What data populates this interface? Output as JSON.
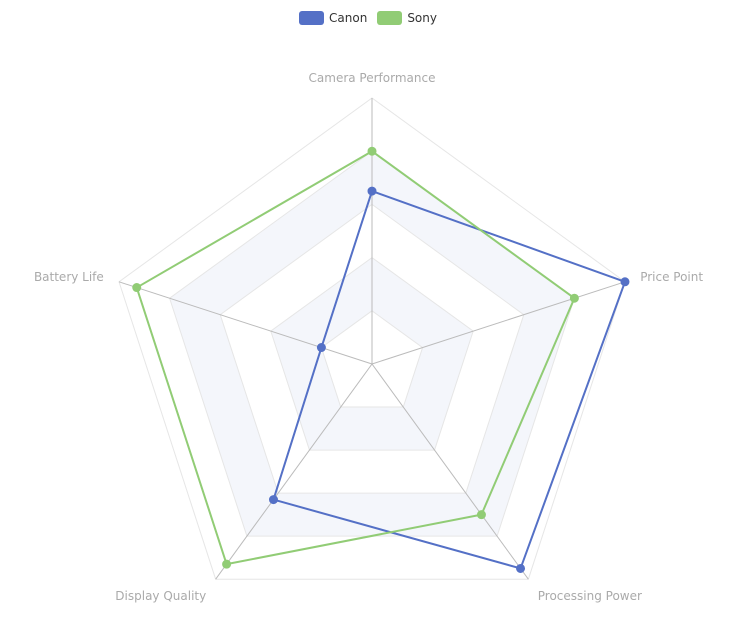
{
  "chart_data": {
    "type": "radar",
    "indicators": [
      "Camera Performance",
      "Price Point",
      "Processing Power",
      "Display Quality",
      "Battery Life"
    ],
    "max": 100,
    "series": [
      {
        "name": "Canon",
        "color": "#5470c6",
        "values": [
          65,
          100,
          95,
          63,
          20
        ]
      },
      {
        "name": "Sony",
        "color": "#91cc75",
        "values": [
          80,
          80,
          70,
          93,
          93
        ]
      }
    ],
    "split_number": 5,
    "split_area_colors": [
      "#ffffff",
      "#f4f6fb"
    ],
    "legend_position": "top-center"
  }
}
